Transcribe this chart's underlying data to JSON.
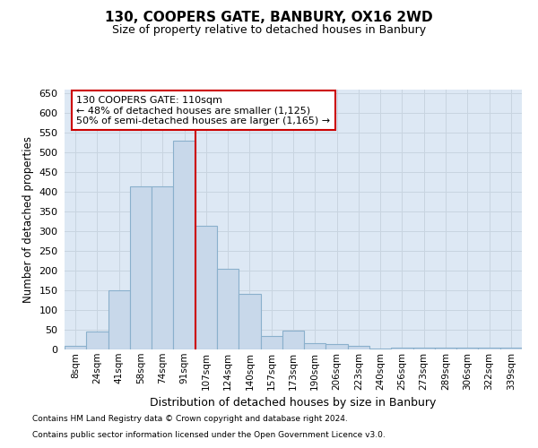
{
  "title": "130, COOPERS GATE, BANBURY, OX16 2WD",
  "subtitle": "Size of property relative to detached houses in Banbury",
  "xlabel": "Distribution of detached houses by size in Banbury",
  "ylabel": "Number of detached properties",
  "categories": [
    "8sqm",
    "24sqm",
    "41sqm",
    "58sqm",
    "74sqm",
    "91sqm",
    "107sqm",
    "124sqm",
    "140sqm",
    "157sqm",
    "173sqm",
    "190sqm",
    "206sqm",
    "223sqm",
    "240sqm",
    "256sqm",
    "273sqm",
    "289sqm",
    "306sqm",
    "322sqm",
    "339sqm"
  ],
  "values": [
    8,
    45,
    150,
    415,
    415,
    530,
    315,
    205,
    140,
    35,
    48,
    15,
    13,
    8,
    3,
    5,
    5,
    5,
    5,
    5,
    5
  ],
  "bar_color": "#c8d8ea",
  "bar_edge_color": "#8ab0cc",
  "vline_color": "#cc0000",
  "vline_x": 5.5,
  "annotation_line1": "130 COOPERS GATE: 110sqm",
  "annotation_line2": "← 48% of detached houses are smaller (1,125)",
  "annotation_line3": "50% of semi-detached houses are larger (1,165) →",
  "annotation_box_facecolor": "#ffffff",
  "annotation_box_edgecolor": "#cc0000",
  "ylim": [
    0,
    660
  ],
  "yticks": [
    0,
    50,
    100,
    150,
    200,
    250,
    300,
    350,
    400,
    450,
    500,
    550,
    600,
    650
  ],
  "grid_color": "#c8d4e0",
  "bg_color": "#dde8f4",
  "footnote1": "Contains HM Land Registry data © Crown copyright and database right 2024.",
  "footnote2": "Contains public sector information licensed under the Open Government Licence v3.0."
}
